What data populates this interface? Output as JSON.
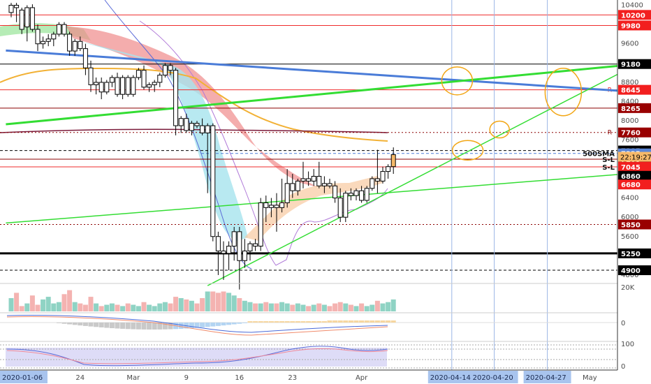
{
  "chart_data": {
    "type": "candlestick",
    "price_axis": {
      "ticks": [
        10400,
        10000,
        9600,
        9200,
        8800,
        8400,
        8000,
        7600,
        7200,
        6800,
        6400,
        6000,
        5600,
        5200,
        4800
      ],
      "range": [
        4640,
        10480
      ]
    },
    "x_axis": {
      "labels": [
        {
          "text": "2020-01-06",
          "index": 0,
          "style": "highlight"
        },
        {
          "text": "24",
          "index": 13,
          "style": "normal"
        },
        {
          "text": "Mar",
          "index": 23,
          "style": "normal"
        },
        {
          "text": "9",
          "index": 33,
          "style": "normal"
        },
        {
          "text": "16",
          "index": 43,
          "style": "normal"
        },
        {
          "text": "23",
          "index": 53,
          "style": "normal"
        },
        {
          "text": "Apr",
          "index": 66,
          "style": "normal"
        },
        {
          "text": "2020-04-14",
          "index": 83,
          "style": "highlight"
        },
        {
          "text": "2020-04-20",
          "index": 91,
          "style": "highlight"
        },
        {
          "text": "2020-04-27",
          "index": 101,
          "style": "highlight"
        },
        {
          "text": "May",
          "index": 109,
          "style": "normal"
        }
      ]
    },
    "candles": [
      [
        10250,
        10450,
        10150,
        10400
      ],
      [
        10400,
        10450,
        10050,
        10350
      ],
      [
        10300,
        10350,
        9800,
        9900
      ],
      [
        9950,
        10400,
        9650,
        10350
      ],
      [
        10350,
        10420,
        9850,
        9900
      ],
      [
        9900,
        10000,
        9450,
        9600
      ],
      [
        9600,
        9750,
        9500,
        9650
      ],
      [
        9650,
        9800,
        9550,
        9700
      ],
      [
        9700,
        9850,
        9550,
        9800
      ],
      [
        9800,
        10050,
        9750,
        10000
      ],
      [
        10000,
        10050,
        9750,
        9800
      ],
      [
        9800,
        9850,
        9350,
        9450
      ],
      [
        9450,
        9700,
        9350,
        9650
      ],
      [
        9650,
        9750,
        9450,
        9500
      ],
      [
        9500,
        9600,
        8950,
        9100
      ],
      [
        9100,
        9250,
        8600,
        8750
      ],
      [
        8750,
        8900,
        8550,
        8800
      ],
      [
        8800,
        8900,
        8450,
        8600
      ],
      [
        8600,
        8850,
        8550,
        8800
      ],
      [
        8800,
        8950,
        8700,
        8900
      ],
      [
        8900,
        9000,
        8500,
        8550
      ],
      [
        8550,
        8950,
        8450,
        8900
      ],
      [
        8900,
        8950,
        8500,
        8550
      ],
      [
        8550,
        8950,
        8500,
        8900
      ],
      [
        8900,
        9100,
        8850,
        9050
      ],
      [
        9050,
        9150,
        8650,
        8700
      ],
      [
        8700,
        8800,
        8600,
        8750
      ],
      [
        8750,
        8850,
        8600,
        8800
      ],
      [
        8800,
        9000,
        8700,
        8950
      ],
      [
        8950,
        9200,
        8900,
        9150
      ],
      [
        9150,
        9200,
        8950,
        9050
      ],
      [
        9050,
        9100,
        7700,
        7900
      ],
      [
        7900,
        8100,
        7750,
        8050
      ],
      [
        8050,
        8150,
        7750,
        7800
      ],
      [
        7800,
        8000,
        7700,
        7950
      ],
      [
        7950,
        8000,
        7850,
        7900
      ],
      [
        7900,
        8050,
        7700,
        7750
      ],
      [
        7750,
        7950,
        6500,
        7900
      ],
      [
        7900,
        7950,
        5500,
        5600
      ],
      [
        5600,
        5700,
        4800,
        5300
      ],
      [
        5300,
        5500,
        4700,
        5250
      ],
      [
        5250,
        5500,
        4900,
        5400
      ],
      [
        5400,
        5800,
        5100,
        5700
      ],
      [
        5700,
        5800,
        4500,
        5100
      ],
      [
        5100,
        5550,
        4950,
        5300
      ],
      [
        5300,
        5500,
        5100,
        5450
      ],
      [
        5450,
        5550,
        5300,
        5400
      ],
      [
        5400,
        6400,
        5300,
        6300
      ],
      [
        6300,
        6450,
        5900,
        6200
      ],
      [
        6200,
        6400,
        6000,
        6250
      ],
      [
        6250,
        6500,
        5700,
        6200
      ],
      [
        6200,
        6800,
        6100,
        6300
      ],
      [
        6300,
        7000,
        6200,
        6700
      ],
      [
        6700,
        6900,
        6400,
        6550
      ],
      [
        6550,
        6800,
        6450,
        6750
      ],
      [
        6750,
        7150,
        6600,
        6800
      ],
      [
        6800,
        6950,
        6650,
        6750
      ],
      [
        6750,
        7000,
        6650,
        6850
      ],
      [
        6850,
        7150,
        6600,
        6650
      ],
      [
        6650,
        6850,
        6500,
        6700
      ],
      [
        6700,
        6800,
        6600,
        6650
      ],
      [
        6650,
        6750,
        6300,
        6400
      ],
      [
        6400,
        6600,
        5900,
        6000
      ],
      [
        6000,
        6550,
        5900,
        6500
      ],
      [
        6500,
        6600,
        6350,
        6450
      ],
      [
        6450,
        6600,
        6350,
        6550
      ],
      [
        6550,
        6650,
        6300,
        6350
      ],
      [
        6350,
        6650,
        6300,
        6600
      ],
      [
        6600,
        6850,
        6550,
        6800
      ],
      [
        6800,
        7400,
        6500,
        6750
      ],
      [
        6750,
        7050,
        6700,
        6950
      ],
      [
        6950,
        7100,
        6800,
        7050
      ],
      [
        7050,
        7450,
        6900,
        7300
      ]
    ],
    "last_candle_color": "#f6b96a",
    "horizontal_levels": [
      {
        "price": 10200,
        "label": "10200",
        "color": "#ef2b2b",
        "style": "solid"
      },
      {
        "price": 9980,
        "label": "9980",
        "color": "#ef2b2b",
        "style": "solid"
      },
      {
        "price": 9180,
        "label": "9180",
        "color": "#000000",
        "style": "solid"
      },
      {
        "price": 8645,
        "label": "8645",
        "color": "#ef2b2b",
        "style": "solid",
        "marker": "R"
      },
      {
        "price": 8265,
        "label": "8265",
        "color": "#8b0000",
        "style": "solid"
      },
      {
        "price": 7760,
        "label": "7760",
        "color": "#8b0000",
        "style": "dotted",
        "marker": "R"
      },
      {
        "price": 7385,
        "label": "7385",
        "color": "#000000",
        "style": "dashed"
      },
      {
        "price": 7325,
        "label": "7325",
        "color": "#4a7cd8",
        "style": "dashed",
        "note": "500SMA"
      },
      {
        "price": 7205,
        "label": "7205",
        "color": "#8b0000",
        "style": "solid",
        "note": "S-L"
      },
      {
        "price": 7045,
        "label": "7045",
        "color": "#ef2b2b",
        "style": "solid",
        "note": "S-L"
      },
      {
        "price": 6860,
        "label": "6860",
        "color": "#000000",
        "style": "none"
      },
      {
        "price": 6680,
        "label": "6680",
        "color": "#ef2b2b",
        "style": "none"
      },
      {
        "price": 5850,
        "label": "5850",
        "color": "#8b0000",
        "style": "dotted"
      },
      {
        "price": 5250,
        "label": "5250",
        "color": "#000000",
        "style": "thick"
      },
      {
        "price": 4900,
        "label": "4900",
        "color": "#000000",
        "style": "dashed"
      }
    ],
    "last_price_tag": {
      "price": 7255,
      "label": "22:19:27",
      "color": "#f6b96a"
    },
    "trend_lines": [
      {
        "name": "",
        "color": "#4a7cd8",
        "from": [
          -1,
          9460
        ],
        "to": [
          118,
          8600
        ]
      },
      {
        "name": "",
        "color": "#33dd33",
        "from": [
          -1,
          7930
        ],
        "to": [
          118,
          9180
        ]
      },
      {
        "name": "",
        "color": "#33dd33",
        "from": [
          -1,
          5880
        ],
        "to": [
          118,
          6920
        ]
      },
      {
        "name": "",
        "color": "#33dd33",
        "from": [
          37,
          4580
        ],
        "to": [
          118,
          9180
        ]
      }
    ],
    "annotation_circles": [
      {
        "x": 84,
        "price": 8830
      },
      {
        "x": 104,
        "price": 8600
      },
      {
        "x": 92,
        "price": 7820
      },
      {
        "x": 86,
        "price": 7390
      }
    ],
    "vertical_markers": [
      83,
      91,
      101
    ],
    "indicators": {
      "volume": {
        "label": "20K",
        "max": 20000
      },
      "macd": {
        "zero_label": "0"
      },
      "rsi": {
        "upper": 100,
        "lower": 0,
        "labels": [
          "100",
          "0"
        ]
      }
    },
    "colors": {
      "up": "#26a69a",
      "down": "#ef5350",
      "candle_body": "#ffffff",
      "frame": "#000000"
    }
  }
}
